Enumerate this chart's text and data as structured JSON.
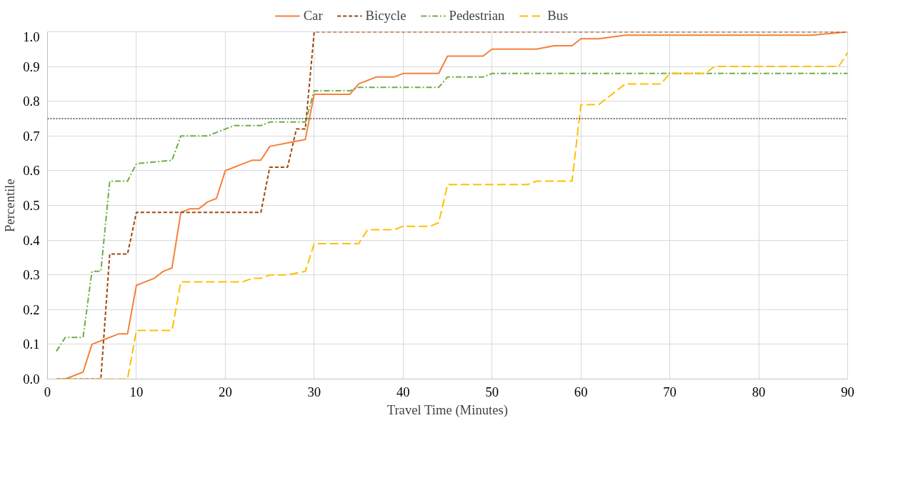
{
  "chart_data": {
    "type": "line",
    "xlabel": "Travel Time (Minutes)",
    "ylabel": "Percentile",
    "xlim": [
      0,
      90
    ],
    "ylim": [
      0,
      1
    ],
    "xticks": [
      0,
      10,
      20,
      30,
      40,
      50,
      60,
      70,
      80,
      90
    ],
    "yticks": [
      {
        "value": 0,
        "label": "0.0"
      },
      {
        "value": 0.1,
        "label": "0.1"
      },
      {
        "value": 0.2,
        "label": "0.2"
      },
      {
        "value": 0.3,
        "label": "0.3"
      },
      {
        "value": 0.4,
        "label": "0.4"
      },
      {
        "value": 0.5,
        "label": "0.5"
      },
      {
        "value": 0.6,
        "label": "0.6"
      },
      {
        "value": 0.7,
        "label": "0.7"
      },
      {
        "value": 0.8,
        "label": "0.8"
      },
      {
        "value": 0.9,
        "label": "0.9"
      },
      {
        "value": 1,
        "label": "1.0"
      }
    ],
    "grid": true,
    "legend": "top",
    "marker": "none",
    "ref_lines": [
      {
        "axis": "y",
        "value": 0.75,
        "label": null,
        "color": "#404040",
        "line_style": "dotted"
      }
    ],
    "series": [
      {
        "name": "Car",
        "color": "#f5813a",
        "line_style": "solid",
        "x": [
          1,
          2,
          4,
          5,
          6,
          8,
          9,
          10,
          11,
          12,
          13,
          14,
          15,
          16,
          17,
          18,
          19,
          20,
          21,
          22,
          23,
          24,
          25,
          27,
          29,
          30,
          34,
          35,
          37,
          39,
          40,
          41,
          42,
          44,
          45,
          47,
          49,
          50,
          54,
          55,
          57,
          59,
          60,
          62,
          65,
          69,
          70,
          74,
          75,
          86,
          90
        ],
        "values": [
          0,
          0,
          0.02,
          0.1,
          0.11,
          0.13,
          0.13,
          0.27,
          0.28,
          0.29,
          0.31,
          0.32,
          0.48,
          0.49,
          0.49,
          0.51,
          0.52,
          0.6,
          0.61,
          0.62,
          0.63,
          0.63,
          0.67,
          0.68,
          0.69,
          0.82,
          0.82,
          0.85,
          0.87,
          0.87,
          0.88,
          0.88,
          0.88,
          0.88,
          0.93,
          0.93,
          0.93,
          0.95,
          0.95,
          0.95,
          0.96,
          0.96,
          0.98,
          0.98,
          0.99,
          0.99,
          0.99,
          0.99,
          0.99,
          0.99,
          1.0
        ]
      },
      {
        "name": "Bicycle",
        "color": "#9e480e",
        "line_style": "dashed",
        "x": [
          1,
          6,
          7,
          9,
          10,
          24,
          25,
          27,
          28,
          29,
          30,
          90
        ],
        "values": [
          0,
          0,
          0.36,
          0.36,
          0.48,
          0.48,
          0.61,
          0.61,
          0.72,
          0.72,
          1.0,
          1.0
        ]
      },
      {
        "name": "Pedestrian",
        "color": "#70ad47",
        "line_style": "dashdot",
        "x": [
          1,
          2,
          4,
          5,
          6,
          7,
          9,
          10,
          14,
          15,
          18,
          19,
          20,
          21,
          24,
          25,
          29,
          30,
          34,
          35,
          44,
          45,
          49,
          50,
          59,
          60,
          90
        ],
        "values": [
          0.08,
          0.12,
          0.12,
          0.31,
          0.31,
          0.57,
          0.57,
          0.62,
          0.63,
          0.7,
          0.7,
          0.71,
          0.72,
          0.73,
          0.73,
          0.74,
          0.74,
          0.83,
          0.83,
          0.84,
          0.84,
          0.87,
          0.87,
          0.88,
          0.88,
          0.88,
          0.88
        ]
      },
      {
        "name": "Bus",
        "color": "#ffc000",
        "line_style": "longdash",
        "x": [
          1,
          9,
          10,
          14,
          15,
          20,
          22,
          23,
          24,
          25,
          27,
          29,
          30,
          35,
          36,
          39,
          40,
          43,
          44,
          45,
          51,
          54,
          55,
          59,
          60,
          62,
          65,
          69,
          70,
          74,
          75,
          77,
          80,
          85,
          89,
          90
        ],
        "values": [
          0,
          0,
          0.14,
          0.14,
          0.28,
          0.28,
          0.28,
          0.29,
          0.29,
          0.3,
          0.3,
          0.31,
          0.39,
          0.39,
          0.43,
          0.43,
          0.44,
          0.44,
          0.45,
          0.56,
          0.56,
          0.56,
          0.57,
          0.57,
          0.79,
          0.79,
          0.85,
          0.85,
          0.88,
          0.88,
          0.9,
          0.9,
          0.9,
          0.9,
          0.9,
          0.94
        ]
      }
    ]
  }
}
